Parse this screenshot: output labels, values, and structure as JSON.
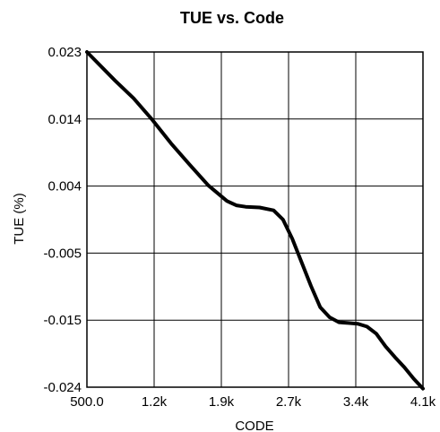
{
  "chart_data": {
    "type": "line",
    "title": "TUE vs. Code",
    "xlabel": "CODE",
    "ylabel": "TUE (%)",
    "x_tick_labels": [
      "500.0",
      "1.2k",
      "1.9k",
      "2.7k",
      "3.4k",
      "4.1k"
    ],
    "y_tick_labels": [
      "0.023",
      "0.014",
      "0.004",
      "-0.005",
      "-0.015",
      "-0.024"
    ],
    "xlim": [
      500,
      4100
    ],
    "ylim": [
      -0.024,
      0.023
    ],
    "grid": true,
    "line_color": "#000000",
    "series": [
      {
        "x": [
          500,
          800,
          1000,
          1200,
          1400,
          1600,
          1800,
          2000,
          2100,
          2200,
          2350,
          2500,
          2600,
          2700,
          2800,
          2900,
          3000,
          3100,
          3200,
          3300,
          3400,
          3500,
          3600,
          3700,
          3800,
          3900,
          4000,
          4100
        ],
        "y": [
          0.023,
          0.019,
          0.0165,
          0.0135,
          0.0102,
          0.0072,
          0.0043,
          0.0021,
          0.0015,
          0.0013,
          0.0012,
          0.0008,
          -0.0005,
          -0.0032,
          -0.0065,
          -0.0098,
          -0.0128,
          -0.0142,
          -0.0149,
          -0.015,
          -0.0151,
          -0.0155,
          -0.0165,
          -0.0183,
          -0.0198,
          -0.0212,
          -0.0228,
          -0.0242
        ]
      }
    ]
  }
}
